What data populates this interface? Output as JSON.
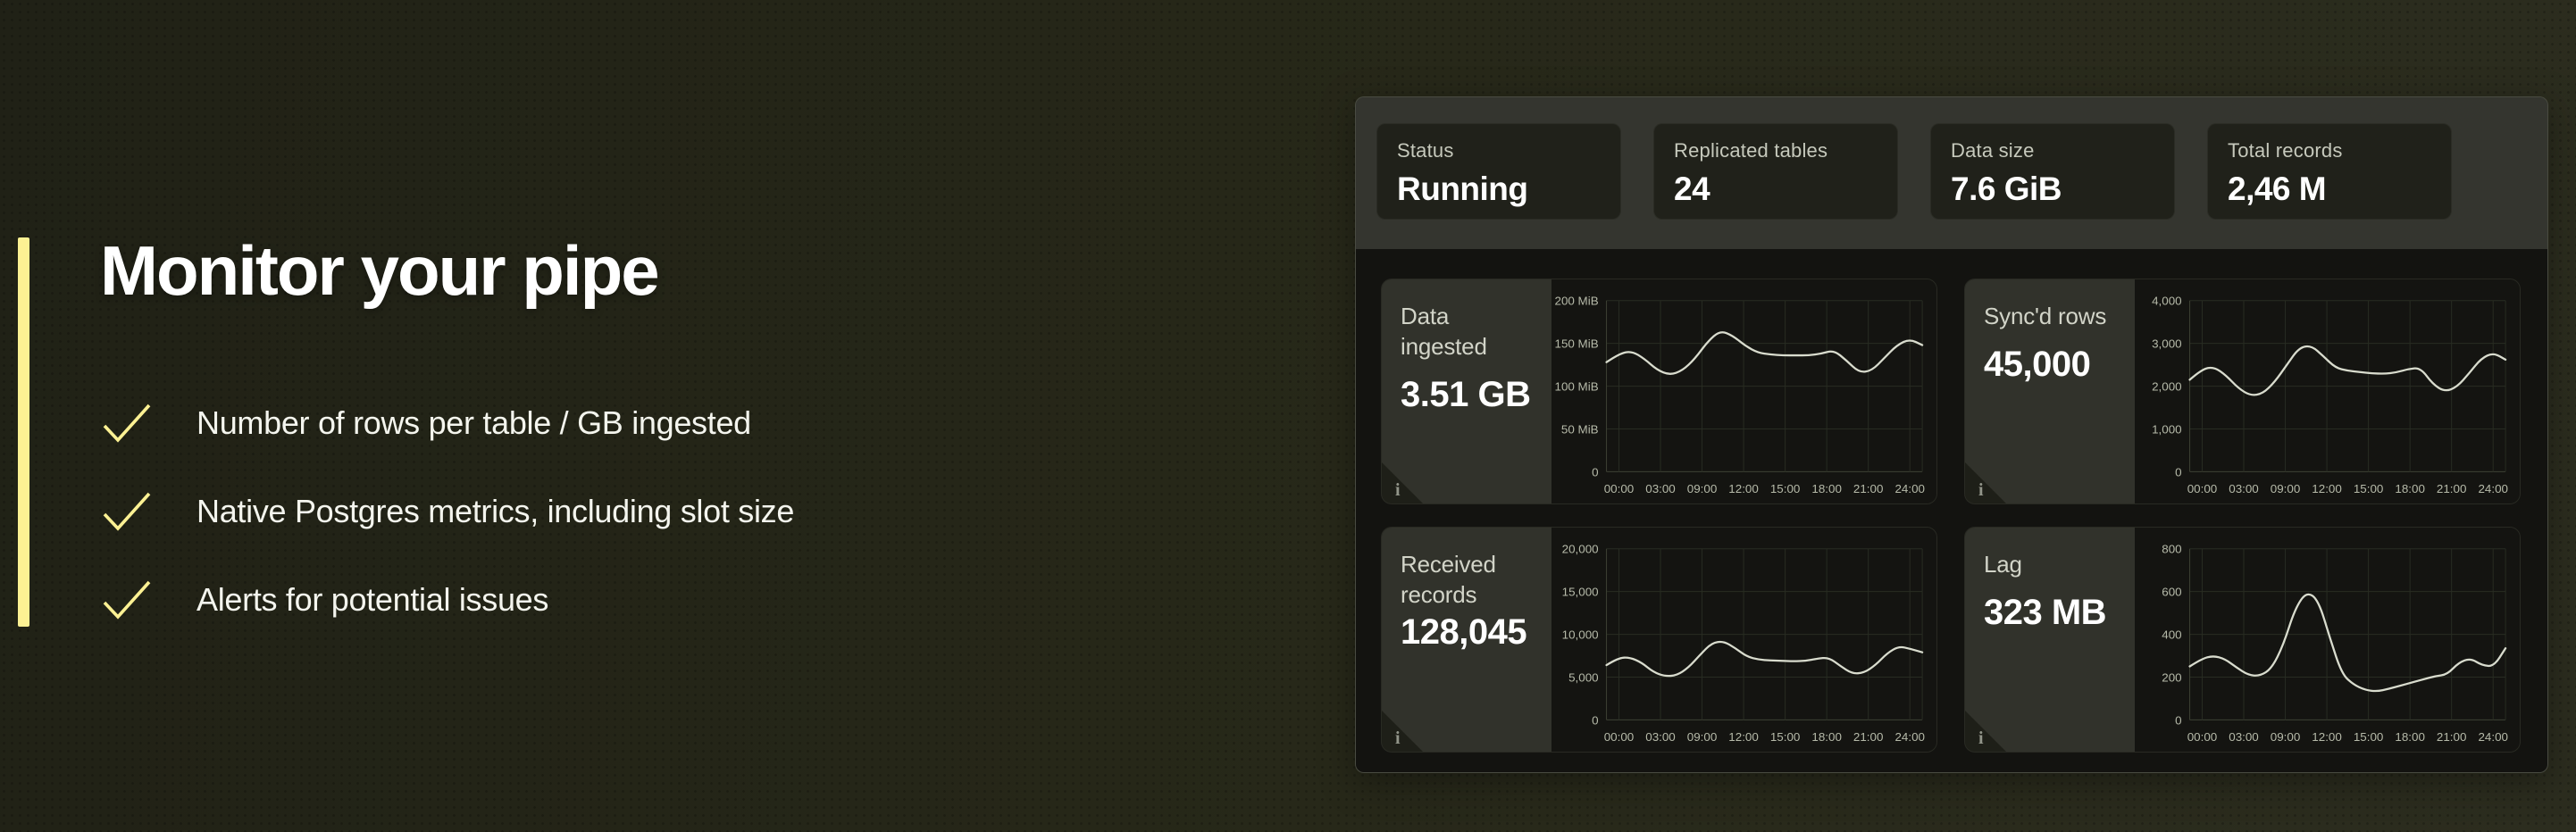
{
  "slide": {
    "heading": "Monitor your pipe",
    "bullets": [
      "Number of rows per table / GB ingested",
      "Native Postgres metrics, including slot size",
      "Alerts for potential issues"
    ],
    "accent_color": "#fcf193"
  },
  "dashboard": {
    "stats": [
      {
        "label": "Status",
        "value": "Running"
      },
      {
        "label": "Replicated tables",
        "value": "24"
      },
      {
        "label": "Data size",
        "value": "7.6 GiB"
      },
      {
        "label": "Total records",
        "value": "2,46 M"
      }
    ],
    "info_icon": "i",
    "colors": {
      "line": "#d9dcce",
      "grid": "#282c22",
      "axis": "#3d4134",
      "tick_text": "#b6baa9"
    }
  },
  "chart_data": [
    {
      "type": "line",
      "title": "Data ingested",
      "card_value": "3.51 GB",
      "x_ticks": [
        "00:00",
        "03:00",
        "09:00",
        "12:00",
        "15:00",
        "18:00",
        "21:00",
        "24:00"
      ],
      "y_ticks": [
        "200 MiB",
        "150 MiB",
        "100 MiB",
        "50 MiB",
        "0"
      ],
      "ylim": [
        0,
        200
      ],
      "values": [
        128,
        138,
        141,
        132,
        119,
        113,
        118,
        132,
        152,
        165,
        159,
        147,
        139,
        137,
        136,
        136,
        136,
        138,
        142,
        130,
        116,
        118,
        133,
        148,
        155,
        148
      ]
    },
    {
      "type": "line",
      "title": "Sync'd rows",
      "card_value": "45,000",
      "x_ticks": [
        "00:00",
        "03:00",
        "09:00",
        "12:00",
        "15:00",
        "18:00",
        "21:00",
        "24:00"
      ],
      "y_ticks": [
        "4,000",
        "3,000",
        "2,000",
        "1,000",
        "0"
      ],
      "ylim": [
        0,
        4000
      ],
      "values": [
        2150,
        2400,
        2450,
        2250,
        1950,
        1780,
        1820,
        2100,
        2500,
        2900,
        2950,
        2700,
        2430,
        2360,
        2330,
        2300,
        2290,
        2320,
        2400,
        2430,
        2050,
        1870,
        1980,
        2300,
        2650,
        2780,
        2620
      ]
    },
    {
      "type": "line",
      "title": "Received records",
      "card_value": "128,045",
      "x_ticks": [
        "00:00",
        "03:00",
        "09:00",
        "12:00",
        "15:00",
        "18:00",
        "21:00",
        "24:00"
      ],
      "y_ticks": [
        "20,000",
        "15,000",
        "10,000",
        "5,000",
        "0"
      ],
      "ylim": [
        0,
        20000
      ],
      "values": [
        6400,
        7250,
        7300,
        6700,
        5600,
        5100,
        5200,
        6100,
        7600,
        9000,
        9200,
        8400,
        7400,
        7050,
        6950,
        6900,
        6850,
        6900,
        7150,
        7300,
        6300,
        5400,
        5500,
        6400,
        7800,
        8600,
        8300,
        7900
      ]
    },
    {
      "type": "line",
      "title": "Lag",
      "card_value": "323 MB",
      "x_ticks": [
        "00:00",
        "03:00",
        "09:00",
        "12:00",
        "15:00",
        "18:00",
        "21:00",
        "24:00"
      ],
      "y_ticks": [
        "800",
        "600",
        "400",
        "200",
        "0"
      ],
      "ylim": [
        0,
        800
      ],
      "values": [
        250,
        285,
        300,
        285,
        245,
        210,
        205,
        240,
        350,
        520,
        600,
        560,
        380,
        215,
        165,
        140,
        133,
        145,
        160,
        175,
        190,
        205,
        212,
        268,
        288,
        255,
        250,
        335
      ]
    }
  ]
}
